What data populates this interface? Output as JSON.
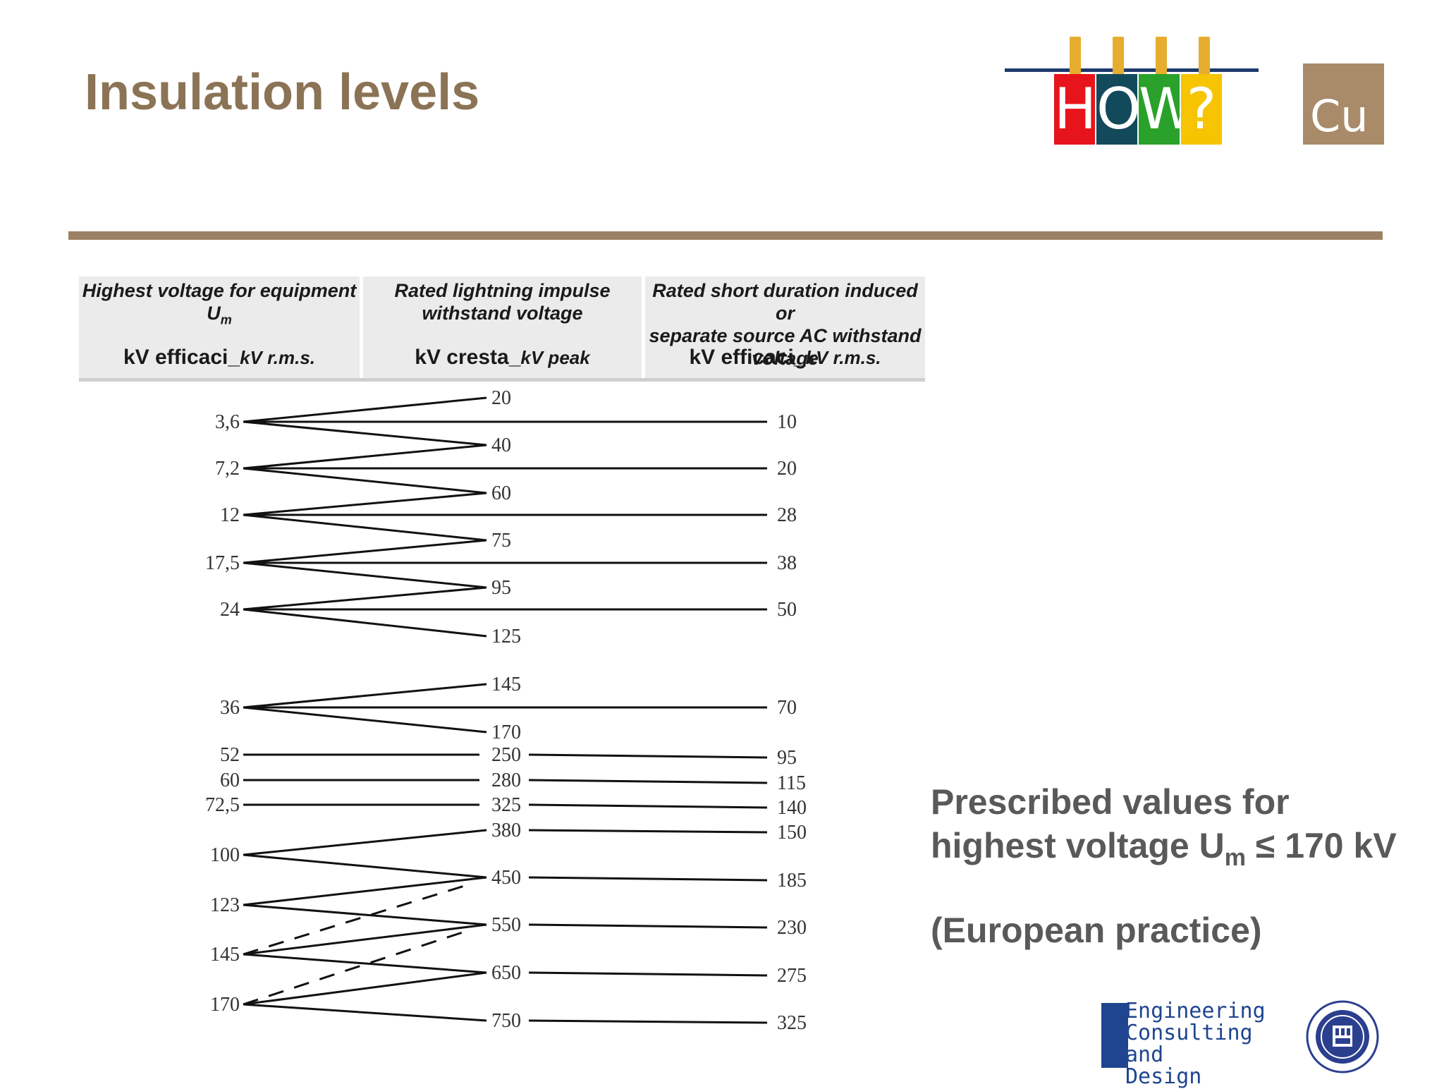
{
  "slide": {
    "title": "Insulation levels"
  },
  "logo_how": {
    "letters": [
      "H",
      "O",
      "W",
      "?"
    ],
    "colors": [
      "#e8141b",
      "#124a5c",
      "#2aa12a",
      "#f6c400"
    ]
  },
  "logo_cu": {
    "text": "Cu"
  },
  "table": {
    "columns": [
      {
        "title": [
          "Highest voltage for equipment",
          "Um"
        ],
        "unit_main": "kV efficaci_",
        "unit_alt": "kV r.m.s."
      },
      {
        "title": [
          "Rated lightning impulse",
          "withstand voltage"
        ],
        "unit_main": "kV cresta_",
        "unit_alt": "kV peak"
      },
      {
        "title": [
          "Rated short duration induced or",
          "separate source AC withstand",
          "voltage"
        ],
        "unit_main": "kV efficaci_",
        "unit_alt": "kV r.m.s."
      }
    ]
  },
  "chart_data": {
    "type": "table",
    "rows": [
      {
        "um": "3,6",
        "impulse": [
          "20",
          "40"
        ],
        "ac": "10"
      },
      {
        "um": "7,2",
        "impulse": [
          "40",
          "60"
        ],
        "ac": "20"
      },
      {
        "um": "12",
        "impulse": [
          "60",
          "75"
        ],
        "ac": "28"
      },
      {
        "um": "17,5",
        "impulse": [
          "75",
          "95"
        ],
        "ac": "38"
      },
      {
        "um": "24",
        "impulse": [
          "95",
          "125"
        ],
        "ac": "50"
      },
      {
        "um": "36",
        "impulse": [
          "145",
          "170"
        ],
        "ac": "70"
      },
      {
        "um": "52",
        "impulse": [
          "250"
        ],
        "ac": "95"
      },
      {
        "um": "60",
        "impulse": [
          "280"
        ],
        "ac": "115"
      },
      {
        "um": "72,5",
        "impulse": [
          "325"
        ],
        "ac": "140"
      },
      {
        "um": "100",
        "impulse": [
          "380",
          "450"
        ],
        "ac": "150 / 185"
      },
      {
        "um": "123",
        "impulse": [
          "450",
          "550"
        ],
        "ac": "185 / 230"
      },
      {
        "um": "145",
        "impulse": [
          "450 (dashed)",
          "550",
          "650"
        ],
        "ac": "230 / 275"
      },
      {
        "um": "170",
        "impulse": [
          "550 (dashed)",
          "650",
          "750"
        ],
        "ac": "275 / 325"
      }
    ],
    "um_labels": [
      "3,6",
      "7,2",
      "12",
      "17,5",
      "24",
      "36",
      "52",
      "60",
      "72,5",
      "100",
      "123",
      "145",
      "170"
    ],
    "impulse_labels": [
      "20",
      "40",
      "60",
      "75",
      "95",
      "125",
      "145",
      "170",
      "250",
      "280",
      "325",
      "380",
      "450",
      "550",
      "650",
      "750"
    ],
    "ac_labels": [
      "10",
      "20",
      "28",
      "38",
      "50",
      "70",
      "95",
      "115",
      "140",
      "150",
      "185",
      "230",
      "275",
      "325"
    ]
  },
  "side_note": {
    "line1": "Prescribed values for",
    "line2_pre": "highest voltage U",
    "line2_sub": "m",
    "line2_post": " ≤ 170 kV",
    "line3": "(European practice)"
  },
  "logo_ecd": {
    "line1": "Engineering",
    "line2": "Consulting and",
    "line3": "Design"
  }
}
